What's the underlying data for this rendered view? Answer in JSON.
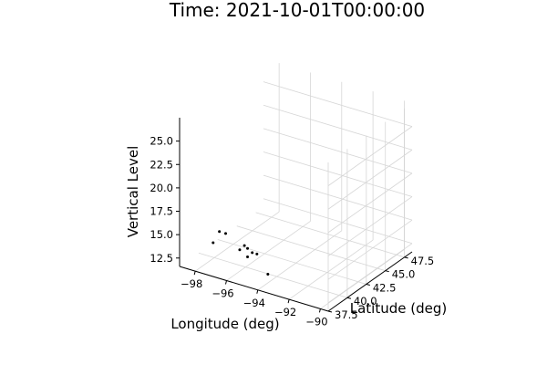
{
  "chart_data": {
    "type": "scatter",
    "title": "Time: 2021-10-01T00:00:00",
    "xlabel": "Longitude (deg)",
    "ylabel": "Latitude (deg)",
    "zlabel": "Vertical Level",
    "xlim": [
      -99,
      -89.5
    ],
    "ylim": [
      37.5,
      48.5
    ],
    "zlim": [
      11.6,
      27.5
    ],
    "xticks": [
      "−98",
      "−96",
      "−94",
      "−92",
      "−90"
    ],
    "xtick_values": [
      -98,
      -96,
      -94,
      -92,
      -90
    ],
    "yticks": [
      "37.5",
      "40.0",
      "42.5",
      "45.0",
      "47.5"
    ],
    "ytick_values": [
      37.5,
      40,
      42.5,
      45,
      47.5
    ],
    "zticks": [
      "12.5",
      "15.0",
      "17.5",
      "20.0",
      "22.5",
      "25.0"
    ],
    "ztick_values": [
      12.5,
      15,
      17.5,
      20,
      22.5,
      25
    ],
    "grid": true,
    "legend": "none",
    "marker_color": "#000000",
    "points": [
      {
        "x": -96.7,
        "y": 38.0,
        "z": 16.2
      },
      {
        "x": -96.3,
        "y": 38.0,
        "z": 16.2
      },
      {
        "x": -97.1,
        "y": 38.0,
        "z": 14.8
      },
      {
        "x": -95.1,
        "y": 38.0,
        "z": 15.5
      },
      {
        "x": -94.9,
        "y": 38.0,
        "z": 15.3
      },
      {
        "x": -94.6,
        "y": 38.0,
        "z": 15.0
      },
      {
        "x": -94.3,
        "y": 38.0,
        "z": 15.0
      },
      {
        "x": -95.4,
        "y": 38.0,
        "z": 14.9
      },
      {
        "x": -94.9,
        "y": 38.0,
        "z": 14.4
      },
      {
        "x": -93.6,
        "y": 38.0,
        "z": 13.2
      }
    ]
  }
}
